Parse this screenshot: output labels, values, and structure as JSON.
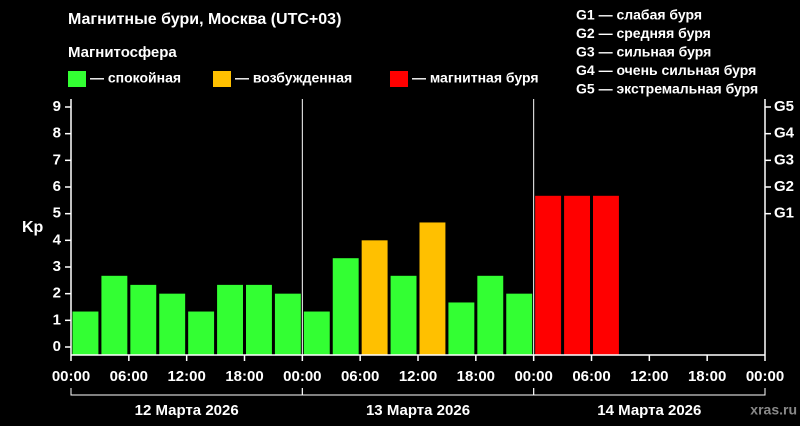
{
  "chart_data": {
    "type": "bar",
    "title": "Магнитные бури, Москва (UTC+03)",
    "subtitle": "Магнитосфера",
    "ylabel": "Kp",
    "watermark": "xras.ru",
    "legend": [
      {
        "name": "— спокойная",
        "color": "#33ff33"
      },
      {
        "name": "— возбужденная",
        "color": "#ffc000"
      },
      {
        "name": "— магнитная буря",
        "color": "#ff0000"
      }
    ],
    "scale_legend": [
      "G1 — слабая буря",
      "G2 — средняя буря",
      "G3 — сильная буря",
      "G4 — очень сильная буря",
      "G5 — экстремальная буря"
    ],
    "x": [
      0,
      3,
      6,
      9,
      12,
      15,
      18,
      21,
      24,
      27,
      30,
      33,
      36,
      39,
      42,
      45,
      48,
      51,
      54,
      57,
      60,
      63,
      66,
      69
    ],
    "values": [
      1.33,
      2.67,
      2.33,
      2.0,
      1.33,
      2.33,
      2.33,
      2.0,
      1.33,
      3.33,
      4.0,
      2.67,
      4.67,
      1.67,
      2.67,
      2.0,
      5.67,
      5.67,
      5.67,
      null,
      null,
      null,
      null,
      null
    ],
    "bar_colors": [
      "#33ff33",
      "#33ff33",
      "#33ff33",
      "#33ff33",
      "#33ff33",
      "#33ff33",
      "#33ff33",
      "#33ff33",
      "#33ff33",
      "#33ff33",
      "#ffc000",
      "#33ff33",
      "#ffc000",
      "#33ff33",
      "#33ff33",
      "#33ff33",
      "#ff0000",
      "#ff0000",
      "#ff0000",
      null,
      null,
      null,
      null,
      null
    ],
    "bar_width": 3,
    "xlim": [
      0,
      72
    ],
    "xticks": [
      {
        "value": 0,
        "label": "00:00"
      },
      {
        "value": 6,
        "label": "06:00"
      },
      {
        "value": 12,
        "label": "12:00"
      },
      {
        "value": 18,
        "label": "18:00"
      },
      {
        "value": 24,
        "label": "00:00"
      },
      {
        "value": 30,
        "label": "06:00"
      },
      {
        "value": 36,
        "label": "12:00"
      },
      {
        "value": 42,
        "label": "18:00"
      },
      {
        "value": 48,
        "label": "00:00"
      },
      {
        "value": 54,
        "label": "06:00"
      },
      {
        "value": 60,
        "label": "12:00"
      },
      {
        "value": 66,
        "label": "18:00"
      },
      {
        "value": 72,
        "label": "00:00"
      }
    ],
    "day_separators": [
      24,
      48
    ],
    "days": [
      {
        "label": "12 Марта 2026",
        "start": 0,
        "end": 24
      },
      {
        "label": "13 Марта 2026",
        "start": 24,
        "end": 48
      },
      {
        "label": "14 Марта 2026",
        "start": 48,
        "end": 72
      }
    ],
    "ylim": [
      -0.3,
      9.3
    ],
    "yticks": [
      0,
      1,
      2,
      3,
      4,
      5,
      6,
      7,
      8,
      9
    ],
    "y2lim": [
      -0.3,
      9.3
    ],
    "y2ticks": [
      {
        "value": 5,
        "label": "G1"
      },
      {
        "value": 6,
        "label": "G2"
      },
      {
        "value": 7,
        "label": "G3"
      },
      {
        "value": 8,
        "label": "G4"
      },
      {
        "value": 9,
        "label": "G5"
      }
    ]
  }
}
